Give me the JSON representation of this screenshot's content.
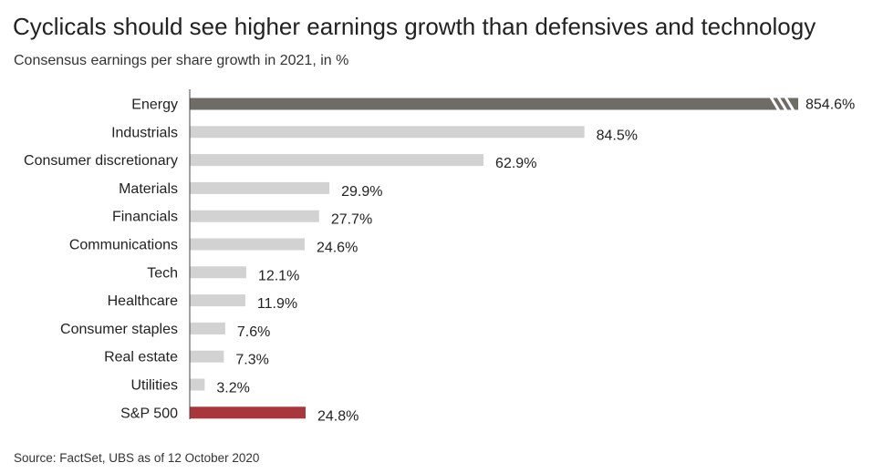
{
  "chart_data": {
    "type": "bar",
    "orientation": "horizontal",
    "title": "Cyclicals should see higher earnings growth than defensives and technology",
    "subtitle": "Consensus earnings per share growth in 2021, in %",
    "source": "Source: FactSet, UBS as of 12 October 2020",
    "categories": [
      "Energy",
      "Industrials",
      "Consumer discretionary",
      "Materials",
      "Financials",
      "Communications",
      "Tech",
      "Healthcare",
      "Consumer staples",
      "Real estate",
      "Utilities",
      "S&P 500"
    ],
    "values": [
      854.6,
      84.5,
      62.9,
      29.9,
      27.7,
      24.6,
      12.1,
      11.9,
      7.6,
      7.3,
      3.2,
      24.8
    ],
    "value_labels": [
      "854.6%",
      "84.5%",
      "62.9%",
      "29.9%",
      "27.7%",
      "24.6%",
      "12.1%",
      "11.9%",
      "7.6%",
      "7.3%",
      "3.2%",
      "24.8%"
    ],
    "axis_break": {
      "category": "Energy",
      "note": "bar truncated with break marks"
    },
    "colors": {
      "Energy": "#6f6b67",
      "default": "#d2d2d2",
      "S&P 500": "#a8363b"
    },
    "grid": false,
    "legend": "none"
  }
}
